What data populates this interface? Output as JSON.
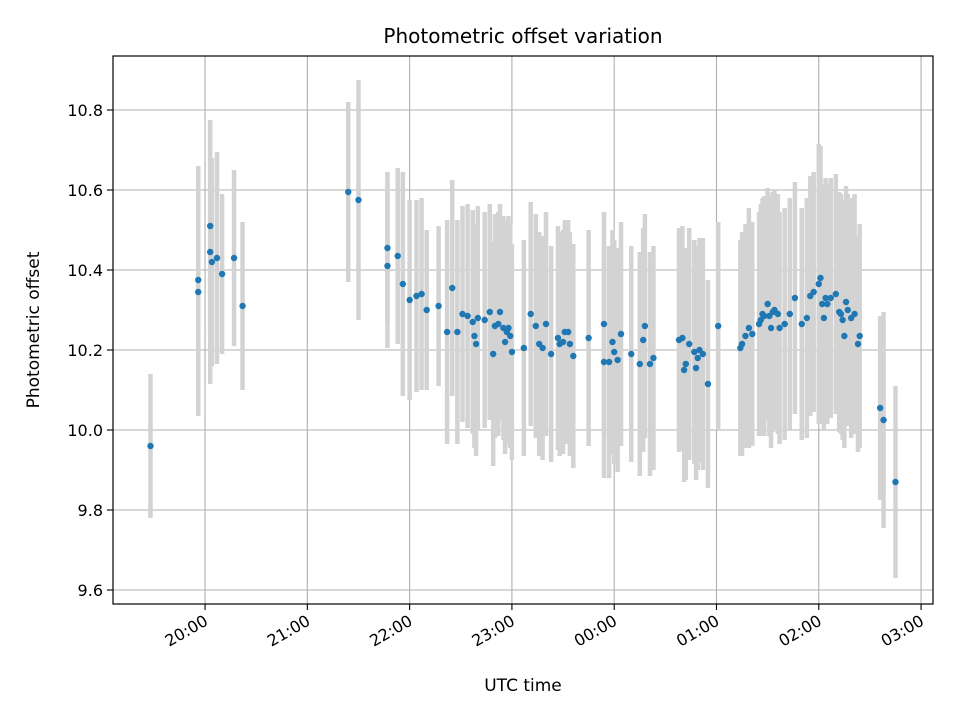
{
  "chart_data": {
    "type": "scatter",
    "title": "Photometric offset variation",
    "xlabel": "UTC time",
    "ylabel": "Photometric offset",
    "x_unit": "UTC time (HH:MM); tick labels after midnight belong to the following day",
    "xlim": [
      "19:06",
      "03:07"
    ],
    "ylim": [
      9.565,
      10.935
    ],
    "grid": true,
    "legend": "none",
    "colors": {
      "points": "#1f77b4",
      "errorbars": "#d3d3d3",
      "grid": "#b0b0b0",
      "axes": "#000000"
    },
    "x_ticks": [
      "20:00",
      "21:00",
      "22:00",
      "23:00",
      "00:00",
      "01:00",
      "02:00",
      "03:00"
    ],
    "y_ticks": [
      "9.6",
      "9.8",
      "10.0",
      "10.2",
      "10.4",
      "10.6",
      "10.8"
    ],
    "series": [
      {
        "points": [
          [
            "19:28",
            9.96,
            0.18
          ],
          [
            "19:56",
            10.375,
            0.285
          ],
          [
            "19:56",
            10.345,
            0.31
          ],
          [
            "20:03",
            10.51,
            0.265
          ],
          [
            "20:03",
            10.445,
            0.33
          ],
          [
            "20:04",
            10.42,
            0.26
          ],
          [
            "20:07",
            10.43,
            0.265
          ],
          [
            "20:10",
            10.39,
            0.2
          ],
          [
            "20:17",
            10.43,
            0.22
          ],
          [
            "20:22",
            10.31,
            0.21
          ],
          [
            "21:24",
            10.595,
            0.225
          ],
          [
            "21:30",
            10.575,
            0.3
          ],
          [
            "21:47",
            10.41,
            0.205
          ],
          [
            "21:47",
            10.455,
            0.19
          ],
          [
            "21:53",
            10.435,
            0.22
          ],
          [
            "21:56",
            10.365,
            0.28
          ],
          [
            "22:00",
            10.325,
            0.25
          ],
          [
            "22:04",
            10.335,
            0.24
          ],
          [
            "22:07",
            10.34,
            0.24
          ],
          [
            "22:10",
            10.3,
            0.2
          ],
          [
            "22:17",
            10.31,
            0.2
          ],
          [
            "22:22",
            10.245,
            0.28
          ],
          [
            "22:25",
            10.355,
            0.27
          ],
          [
            "22:28",
            10.245,
            0.28
          ],
          [
            "22:31",
            10.29,
            0.27
          ],
          [
            "22:34",
            10.285,
            0.28
          ],
          [
            "22:37",
            10.27,
            0.28
          ],
          [
            "22:38",
            10.235,
            0.28
          ],
          [
            "22:39",
            10.215,
            0.28
          ],
          [
            "22:40",
            10.28,
            0.28
          ],
          [
            "22:44",
            10.275,
            0.27
          ],
          [
            "22:47",
            10.295,
            0.27
          ],
          [
            "22:49",
            10.19,
            0.28
          ],
          [
            "22:50",
            10.26,
            0.28
          ],
          [
            "22:52",
            10.265,
            0.28
          ],
          [
            "22:53",
            10.295,
            0.27
          ],
          [
            "22:55",
            10.255,
            0.28
          ],
          [
            "22:56",
            10.22,
            0.28
          ],
          [
            "22:57",
            10.245,
            0.28
          ],
          [
            "22:58",
            10.255,
            0.28
          ],
          [
            "22:59",
            10.235,
            0.28
          ],
          [
            "23:00",
            10.195,
            0.27
          ],
          [
            "23:07",
            10.205,
            0.27
          ],
          [
            "23:11",
            10.29,
            0.28
          ],
          [
            "23:14",
            10.26,
            0.28
          ],
          [
            "23:16",
            10.215,
            0.28
          ],
          [
            "23:18",
            10.205,
            0.28
          ],
          [
            "23:20",
            10.265,
            0.28
          ],
          [
            "23:23",
            10.19,
            0.27
          ],
          [
            "23:27",
            10.23,
            0.28
          ],
          [
            "23:28",
            10.215,
            0.28
          ],
          [
            "23:30",
            10.22,
            0.28
          ],
          [
            "23:31",
            10.245,
            0.28
          ],
          [
            "23:33",
            10.245,
            0.28
          ],
          [
            "23:34",
            10.215,
            0.28
          ],
          [
            "23:36",
            10.185,
            0.28
          ],
          [
            "23:45",
            10.23,
            0.27
          ],
          [
            "23:54",
            10.17,
            0.29
          ],
          [
            "23:54",
            10.265,
            0.28
          ],
          [
            "23:57",
            10.17,
            0.29
          ],
          [
            "23:59",
            10.22,
            0.28
          ],
          [
            "00:00",
            10.195,
            0.28
          ],
          [
            "00:02",
            10.175,
            0.28
          ],
          [
            "00:04",
            10.24,
            0.28
          ],
          [
            "00:10",
            10.19,
            0.27
          ],
          [
            "00:15",
            10.165,
            0.28
          ],
          [
            "00:17",
            10.225,
            0.28
          ],
          [
            "00:18",
            10.26,
            0.28
          ],
          [
            "00:21",
            10.165,
            0.28
          ],
          [
            "00:23",
            10.18,
            0.28
          ],
          [
            "00:38",
            10.225,
            0.28
          ],
          [
            "00:40",
            10.23,
            0.28
          ],
          [
            "00:41",
            10.15,
            0.28
          ],
          [
            "00:42",
            10.165,
            0.29
          ],
          [
            "00:44",
            10.215,
            0.29
          ],
          [
            "00:47",
            10.195,
            0.28
          ],
          [
            "00:48",
            10.155,
            0.28
          ],
          [
            "00:49",
            10.18,
            0.28
          ],
          [
            "00:50",
            10.2,
            0.28
          ],
          [
            "00:52",
            10.19,
            0.29
          ],
          [
            "00:55",
            10.115,
            0.26
          ],
          [
            "01:01",
            10.26,
            0.26
          ],
          [
            "01:14",
            10.205,
            0.27
          ],
          [
            "01:15",
            10.215,
            0.28
          ],
          [
            "01:17",
            10.235,
            0.28
          ],
          [
            "01:19",
            10.255,
            0.3
          ],
          [
            "01:21",
            10.24,
            0.28
          ],
          [
            "01:25",
            10.265,
            0.28
          ],
          [
            "01:26",
            10.275,
            0.29
          ],
          [
            "01:27",
            10.29,
            0.29
          ],
          [
            "01:28",
            10.285,
            0.3
          ],
          [
            "01:30",
            10.315,
            0.29
          ],
          [
            "01:31",
            10.285,
            0.3
          ],
          [
            "01:32",
            10.255,
            0.3
          ],
          [
            "01:33",
            10.295,
            0.3
          ],
          [
            "01:34",
            10.3,
            0.3
          ],
          [
            "01:36",
            10.29,
            0.3
          ],
          [
            "01:37",
            10.255,
            0.29
          ],
          [
            "01:40",
            10.265,
            0.29
          ],
          [
            "01:43",
            10.29,
            0.29
          ],
          [
            "01:46",
            10.33,
            0.29
          ],
          [
            "01:50",
            10.265,
            0.29
          ],
          [
            "01:53",
            10.28,
            0.3
          ],
          [
            "01:55",
            10.335,
            0.3
          ],
          [
            "01:57",
            10.345,
            0.3
          ],
          [
            "02:00",
            10.365,
            0.35
          ],
          [
            "02:01",
            10.38,
            0.33
          ],
          [
            "02:02",
            10.315,
            0.3
          ],
          [
            "02:03",
            10.28,
            0.28
          ],
          [
            "02:04",
            10.33,
            0.3
          ],
          [
            "02:05",
            10.315,
            0.3
          ],
          [
            "02:07",
            10.33,
            0.3
          ],
          [
            "02:10",
            10.34,
            0.3
          ],
          [
            "02:12",
            10.295,
            0.3
          ],
          [
            "02:13",
            10.29,
            0.3
          ],
          [
            "02:14",
            10.275,
            0.3
          ],
          [
            "02:15",
            10.235,
            0.28
          ],
          [
            "02:16",
            10.32,
            0.29
          ],
          [
            "02:17",
            10.3,
            0.29
          ],
          [
            "02:19",
            10.28,
            0.3
          ],
          [
            "02:21",
            10.29,
            0.3
          ],
          [
            "02:23",
            10.215,
            0.27
          ],
          [
            "02:24",
            10.235,
            0.28
          ],
          [
            "02:36",
            10.055,
            0.23
          ],
          [
            "02:38",
            10.025,
            0.27
          ],
          [
            "02:45",
            9.87,
            0.24
          ]
        ]
      }
    ]
  }
}
